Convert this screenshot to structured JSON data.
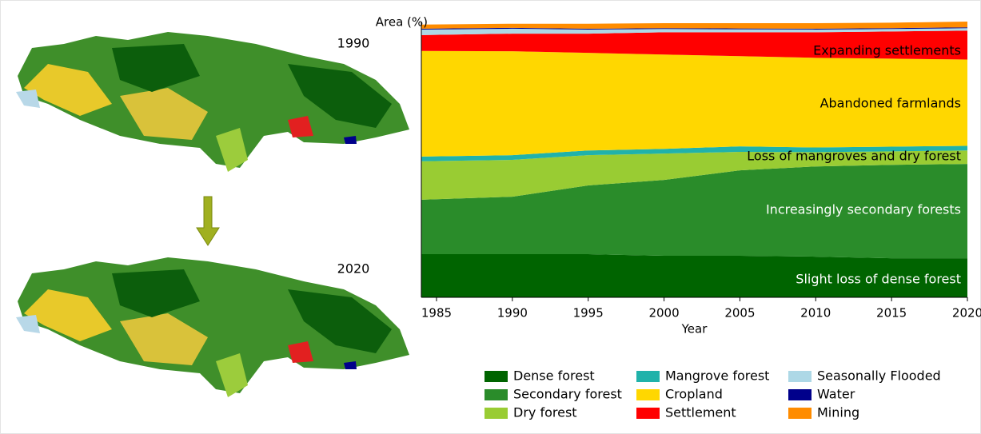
{
  "maps": [
    {
      "label": "1990"
    },
    {
      "label": "2020"
    }
  ],
  "chart_data": {
    "type": "stacked_area",
    "y_label": "Area (%)",
    "x_label": "Year",
    "x": [
      1984,
      1990,
      1995,
      2000,
      2005,
      2010,
      2015,
      2020
    ],
    "xlim": [
      1984,
      2020
    ],
    "xticks": [
      1985,
      1990,
      1995,
      2000,
      2005,
      2010,
      2015,
      2020
    ],
    "ylim": [
      0,
      100
    ],
    "series": [
      {
        "name": "Dense forest",
        "color": "#006400",
        "values": [
          15.7,
          15.7,
          15.7,
          15.1,
          15.1,
          14.8,
          14.2,
          14.2
        ]
      },
      {
        "name": "Secondary forest",
        "color": "#2a8c2a",
        "values": [
          19.8,
          20.9,
          25.0,
          27.6,
          31.1,
          32.8,
          34.0,
          34.3
        ]
      },
      {
        "name": "Dry forest",
        "color": "#99cc33",
        "values": [
          14.0,
          13.4,
          11.0,
          9.6,
          6.7,
          5.2,
          4.9,
          4.9
        ]
      },
      {
        "name": "Mangrove forest",
        "color": "#20b2aa",
        "values": [
          1.7,
          1.7,
          1.7,
          1.7,
          2.0,
          1.7,
          1.7,
          1.7
        ]
      },
      {
        "name": "Cropland",
        "color": "#ffd700",
        "values": [
          38.4,
          37.8,
          35.5,
          34.3,
          32.8,
          32.6,
          32.0,
          31.4
        ]
      },
      {
        "name": "Settlement",
        "color": "#ff0000",
        "values": [
          5.8,
          6.4,
          7.0,
          8.1,
          8.7,
          9.3,
          9.9,
          10.5
        ]
      },
      {
        "name": "Seasonally Flooded",
        "color": "#add8e6",
        "values": [
          2.0,
          1.8,
          1.5,
          1.2,
          1.1,
          1.0,
          0.9,
          0.9
        ]
      },
      {
        "name": "Water",
        "color": "#00008b",
        "values": [
          0.3,
          0.3,
          0.3,
          0.3,
          0.3,
          0.3,
          0.3,
          0.3
        ]
      },
      {
        "name": "Mining",
        "color": "#ff8c00",
        "values": [
          1.5,
          1.5,
          1.8,
          1.8,
          1.9,
          2.0,
          2.0,
          2.1
        ]
      }
    ],
    "annotations": [
      "Expanding settlements",
      "Abandoned farmlands",
      "Loss of mangroves and dry forest",
      "Increasingly secondary forests",
      "Slight loss of dense forest"
    ]
  }
}
